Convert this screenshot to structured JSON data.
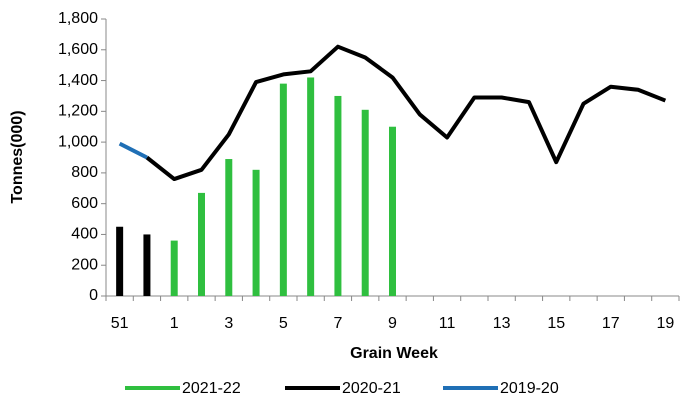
{
  "chart_data": {
    "type": "bar-line",
    "x_label": "Grain Week",
    "y_label": "Tonnes(000)",
    "categories": [
      "51",
      null,
      "1",
      null,
      "3",
      null,
      "5",
      null,
      "7",
      null,
      "9",
      null,
      "11",
      null,
      "13",
      null,
      "15",
      null,
      "17",
      null,
      "19"
    ],
    "ylim": [
      0,
      1800
    ],
    "yticks": [
      0,
      200,
      400,
      600,
      800,
      {
        "value": 1000,
        "label": "1,000"
      },
      {
        "value": 1200,
        "label": "1,200"
      },
      {
        "value": 1400,
        "label": "1,400"
      },
      {
        "value": 1600,
        "label": "1,600"
      },
      {
        "value": 1800,
        "label": "1,800"
      }
    ],
    "legend": "bottom",
    "series": [
      {
        "name": "2021-22",
        "kind": "bar",
        "color": "#2fbf3f",
        "colors": [
          "#000000",
          "#000000",
          "#2fbf3f",
          "#2fbf3f",
          "#2fbf3f",
          "#2fbf3f",
          "#2fbf3f",
          "#2fbf3f",
          "#2fbf3f",
          "#2fbf3f",
          "#2fbf3f",
          null,
          null,
          null,
          null,
          null,
          null,
          null,
          null,
          null,
          null
        ],
        "values": [
          450,
          400,
          360,
          670,
          890,
          820,
          1380,
          1420,
          1300,
          1210,
          1100,
          null,
          null,
          null,
          null,
          null,
          null,
          null,
          null,
          null,
          null
        ]
      },
      {
        "name": "2020-21",
        "kind": "line",
        "color": "#000000",
        "values": [
          null,
          900,
          760,
          820,
          1050,
          1390,
          1440,
          1460,
          1620,
          1550,
          1420,
          1180,
          1030,
          1290,
          1290,
          1260,
          870,
          1250,
          1360,
          1340,
          1270
        ]
      },
      {
        "name": "2019-20",
        "kind": "line",
        "color": "#1f6fb5",
        "values": [
          990,
          900,
          null,
          null,
          null,
          null,
          null,
          null,
          null,
          null,
          null,
          null,
          null,
          null,
          null,
          null,
          null,
          null,
          null,
          null,
          null
        ]
      }
    ]
  }
}
